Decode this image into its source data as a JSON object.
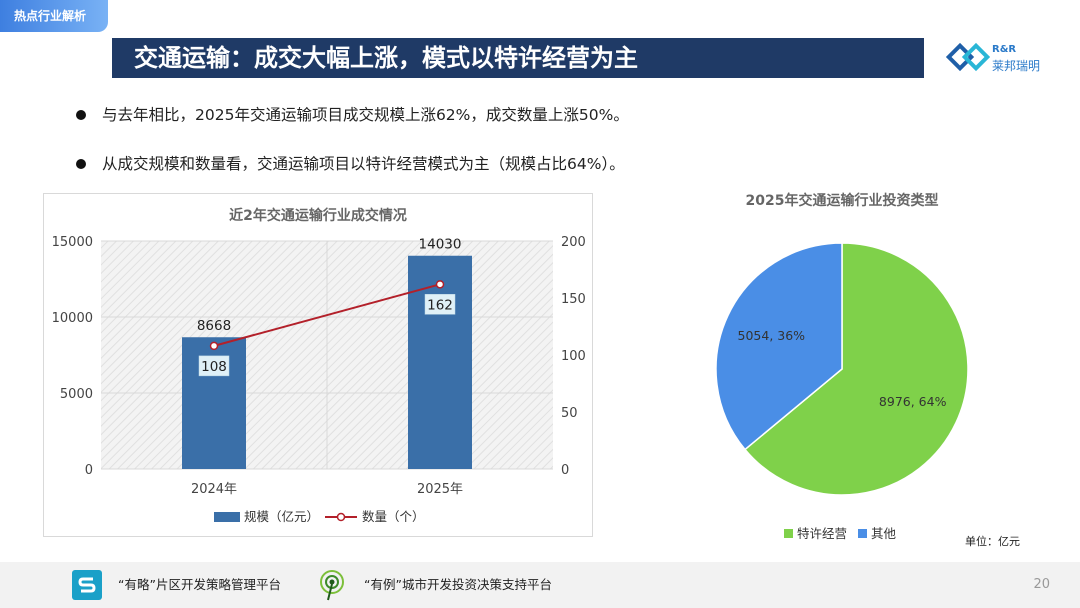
{
  "header": {
    "tag": "热点行业解析",
    "title": "交通运输：成交大幅上涨，模式以特许经营为主",
    "logo_en": "R&R",
    "logo_cn": "莱邦瑞明"
  },
  "bullets": [
    "与去年相比，2025年交通运输项目成交规模上涨62%，成交数量上涨50%。",
    "从成交规模和数量看，交通运输项目以特许经营模式为主（规模占比64%）。"
  ],
  "chart_data": [
    {
      "type": "bar",
      "title": "近2年交通运输行业成交情况",
      "categories": [
        "2024年",
        "2025年"
      ],
      "series": [
        {
          "name": "规模（亿元）",
          "type": "bar",
          "axis": "left",
          "values": [
            8668,
            14030
          ],
          "color": "#3a6fa8"
        },
        {
          "name": "数量（个）",
          "type": "line",
          "axis": "right",
          "values": [
            108,
            162
          ],
          "color": "#b3202a"
        }
      ],
      "y_left": {
        "min": 0,
        "max": 15000,
        "ticks": [
          0,
          5000,
          10000,
          15000
        ]
      },
      "y_right": {
        "min": 0,
        "max": 200,
        "ticks": [
          0,
          50,
          100,
          150,
          200
        ]
      },
      "grid": true,
      "legend": "bottom"
    },
    {
      "type": "pie",
      "title": "2025年交通运输行业投资类型",
      "slices": [
        {
          "name": "特许经营",
          "value": 8976,
          "percent": 64,
          "label": "8976, 64%",
          "color": "#7fd14a"
        },
        {
          "name": "其他",
          "value": 5054,
          "percent": 36,
          "label": "5054, 36%",
          "color": "#4a8ee6"
        }
      ],
      "legend": "bottom",
      "unit_note": "单位：亿元"
    }
  ],
  "footer": {
    "item1": "“有略”片区开发策略管理平台",
    "item2": "“有例”城市开发投资决策支持平台",
    "page": "20"
  }
}
